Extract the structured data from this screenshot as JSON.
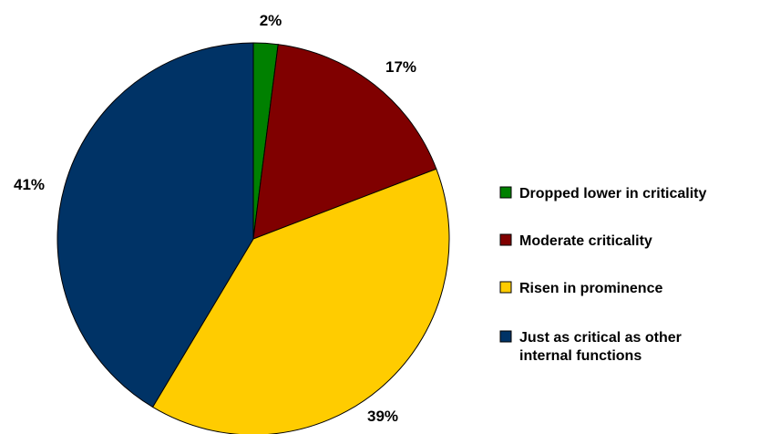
{
  "chart_data": {
    "type": "pie",
    "categories": [
      "Dropped lower in criticality",
      "Moderate criticality",
      "Risen in prominence",
      "Just as critical as other internal functions"
    ],
    "values": [
      2,
      17,
      39,
      41
    ],
    "value_labels": [
      "2%",
      "17%",
      "39%",
      "41%"
    ],
    "colors": [
      "#008000",
      "#800000",
      "#FFCC00",
      "#003366"
    ],
    "legend": {
      "placement": "right",
      "entries": [
        {
          "lines": [
            "Dropped lower in criticality"
          ]
        },
        {
          "lines": [
            "Moderate criticality"
          ]
        },
        {
          "lines": [
            "Risen in prominence"
          ]
        },
        {
          "lines": [
            "Just as critical as other",
            "internal functions"
          ]
        }
      ]
    },
    "title": ""
  }
}
